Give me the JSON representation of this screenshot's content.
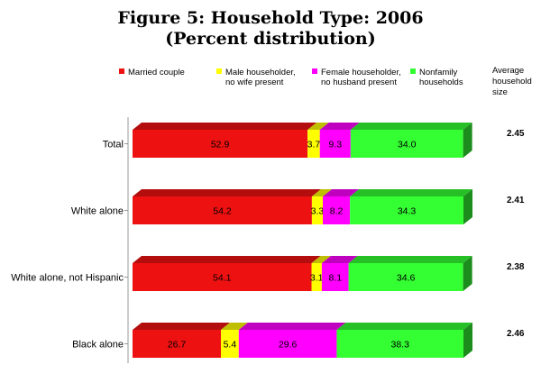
{
  "title_line_1": "Figure 5: Household Type: 2006",
  "title_line_2": "(Percent distribution)",
  "chart_data": {
    "type": "bar",
    "orientation": "horizontal",
    "stacked": true,
    "title": "Figure 5: Household Type: 2006",
    "subtitle": "(Percent distribution)",
    "categories": [
      "Total",
      "White alone",
      "White alone, not Hispanic",
      "Black alone"
    ],
    "series": [
      {
        "name": "Married couple",
        "values": [
          52.9,
          54.2,
          54.1,
          26.7
        ],
        "color": "#ee1111",
        "label_lines": [
          "Married couple"
        ]
      },
      {
        "name": "Male householder, no wife present",
        "values": [
          3.7,
          3.3,
          3.1,
          5.4
        ],
        "color": "#ffff00",
        "label_lines": [
          "Male householder,",
          "no wife present"
        ]
      },
      {
        "name": "Female householder, no husband present",
        "values": [
          9.3,
          8.2,
          8.1,
          29.6
        ],
        "color": "#ff00ff",
        "label_lines": [
          "Female householder,",
          "no husband present"
        ]
      },
      {
        "name": "Nonfamily households",
        "values": [
          34.0,
          34.3,
          34.6,
          38.3
        ],
        "color": "#33ff33",
        "label_lines": [
          "Nonfamily",
          "households"
        ]
      }
    ],
    "average_household_size": {
      "header_lines": [
        "Average",
        "household",
        "size"
      ],
      "values": [
        "2.45",
        "2.41",
        "2.38",
        "2.46"
      ]
    },
    "xlim": [
      0,
      100
    ],
    "legend": "top",
    "grid": false
  }
}
